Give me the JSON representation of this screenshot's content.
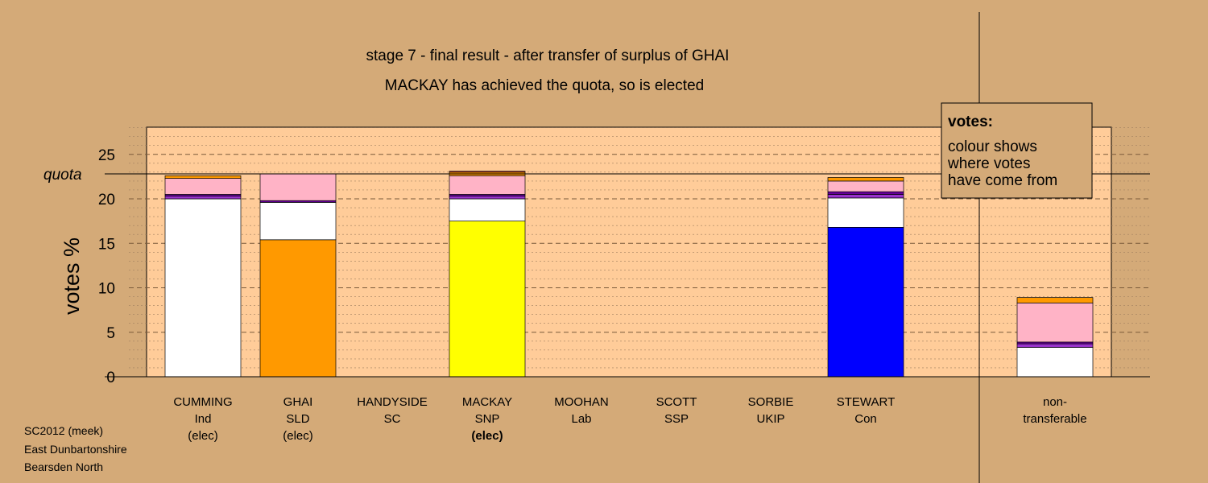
{
  "title_lines": [
    "stage 7 - final result - after transfer of surplus of GHAI",
    "MACKAY has achieved the quota, so is elected"
  ],
  "source_lines": [
    "SC2012 (meek)",
    "East Dunbartonshire",
    "Bearsden North"
  ],
  "legend": {
    "heading": "votes:",
    "lines": [
      "colour shows",
      "where votes",
      "have come from"
    ]
  },
  "colors": {
    "background": "#d4aa78",
    "plot_area": "#ffcc99",
    "Ind": "#ffffff",
    "SLD": "#ff9900",
    "SNP": "#ffff00",
    "Con": "#0000ff",
    "SC": "#9933cc",
    "Lab": "#ffb3c6",
    "UKIP": "#660099",
    "SSP": "#ff3333"
  },
  "chart_data": {
    "type": "bar",
    "stacked": true,
    "ylabel": "votes %",
    "ylim": [
      0,
      28
    ],
    "yticks": [
      0,
      5,
      10,
      15,
      20,
      25
    ],
    "grid": true,
    "quota": 22.8,
    "quota_label": "quota",
    "categories": [
      {
        "lines": [
          "CUMMING",
          "Ind",
          "(elec)"
        ],
        "bold_line": -1
      },
      {
        "lines": [
          "GHAI",
          "SLD",
          "(elec)"
        ],
        "bold_line": -1
      },
      {
        "lines": [
          "HANDYSIDE",
          "SC"
        ],
        "bold_line": -1
      },
      {
        "lines": [
          "MACKAY",
          "SNP",
          "(elec)"
        ],
        "bold_line": 2
      },
      {
        "lines": [
          "MOOHAN",
          "Lab"
        ],
        "bold_line": -1
      },
      {
        "lines": [
          "SCOTT",
          "SSP"
        ],
        "bold_line": -1
      },
      {
        "lines": [
          "SORBIE",
          "UKIP"
        ],
        "bold_line": -1
      },
      {
        "lines": [
          "STEWART",
          "Con"
        ],
        "bold_line": -1
      },
      {
        "lines": [
          "non-",
          "transferable"
        ],
        "bold_line": -1
      }
    ],
    "stacks": [
      [
        {
          "from": "Ind",
          "value": 20.0
        },
        {
          "from": "SC",
          "value": 0.3
        },
        {
          "from": "UKIP",
          "value": 0.2
        },
        {
          "from": "Lab",
          "value": 1.8
        },
        {
          "from": "SLD",
          "value": 0.3
        }
      ],
      [
        {
          "from": "SLD",
          "value": 15.4
        },
        {
          "from": "Ind",
          "value": 4.2
        },
        {
          "from": "UKIP",
          "value": 0.2
        },
        {
          "from": "Lab",
          "value": 3.0
        }
      ],
      [],
      [
        {
          "from": "SNP",
          "value": 17.5
        },
        {
          "from": "Ind",
          "value": 2.5
        },
        {
          "from": "SC",
          "value": 0.3
        },
        {
          "from": "UKIP",
          "value": 0.2
        },
        {
          "from": "Lab",
          "value": 2.1
        },
        {
          "from": "SLD",
          "value": 0.4
        },
        {
          "from": "SSP",
          "value": 0.1
        }
      ],
      [],
      [],
      [],
      [
        {
          "from": "Con",
          "value": 16.8
        },
        {
          "from": "Ind",
          "value": 3.3
        },
        {
          "from": "SC",
          "value": 0.4
        },
        {
          "from": "UKIP",
          "value": 0.3
        },
        {
          "from": "Lab",
          "value": 1.2
        },
        {
          "from": "SLD",
          "value": 0.4
        }
      ],
      [
        {
          "from": "Ind",
          "value": 3.3
        },
        {
          "from": "SC",
          "value": 0.4
        },
        {
          "from": "UKIP",
          "value": 0.2
        },
        {
          "from": "Lab",
          "value": 4.4
        },
        {
          "from": "SLD",
          "value": 0.6
        }
      ]
    ]
  }
}
